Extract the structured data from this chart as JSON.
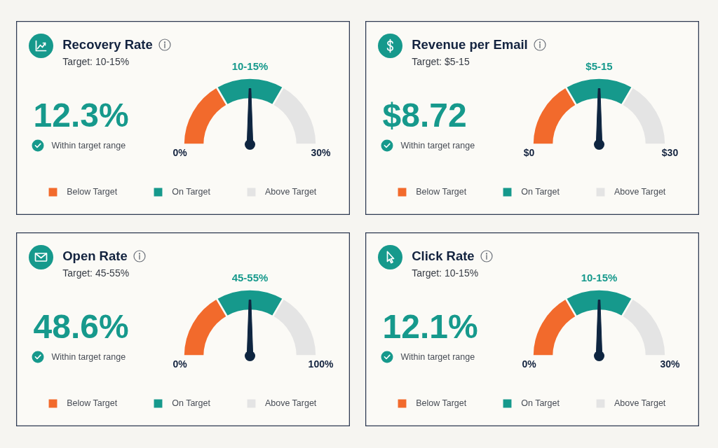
{
  "chart_data": [
    {
      "type": "donut",
      "title": "Recovery Rate",
      "subtitle": "Target: 10-15%",
      "categories": [
        "Below Target",
        "On Target",
        "Above Target"
      ],
      "values": [
        33.3,
        33.4,
        33.3
      ],
      "colors": [
        "#f26a2c",
        "#16998c",
        "#e4e4e4"
      ],
      "needle": "On Target",
      "legend": "bottom",
      "annotations": [
        "12.3%",
        "Within target range",
        "10-15%",
        "0%",
        "30%"
      ]
    },
    {
      "type": "donut",
      "title": "Revenue per Email",
      "subtitle": "Target: $5-15",
      "categories": [
        "Below Target",
        "On Target",
        "Above Target"
      ],
      "values": [
        33.3,
        33.4,
        33.3
      ],
      "colors": [
        "#f26a2c",
        "#16998c",
        "#e4e4e4"
      ],
      "needle": "On Target",
      "legend": "bottom",
      "annotations": [
        "$8.72",
        "Within target range",
        "$5-15",
        "$0",
        "$30"
      ]
    },
    {
      "type": "donut",
      "title": "Open Rate",
      "subtitle": "Target: 45-55%",
      "categories": [
        "Below Target",
        "On Target",
        "Above Target"
      ],
      "values": [
        33.3,
        33.4,
        33.3
      ],
      "colors": [
        "#f26a2c",
        "#16998c",
        "#e4e4e4"
      ],
      "needle": "On Target",
      "legend": "bottom",
      "annotations": [
        "48.6%",
        "Within target range",
        "45-55%",
        "0%",
        "100%"
      ]
    },
    {
      "type": "donut",
      "title": "Click Rate",
      "subtitle": "Target: 10-15%",
      "categories": [
        "Below Target",
        "On Target",
        "Above Target"
      ],
      "values": [
        33.3,
        33.4,
        33.3
      ],
      "colors": [
        "#f26a2c",
        "#16998c",
        "#e4e4e4"
      ],
      "needle": "On Target",
      "legend": "bottom",
      "annotations": [
        "12.1%",
        "Within target range",
        "10-15%",
        "0%",
        "30%"
      ]
    }
  ]
}
